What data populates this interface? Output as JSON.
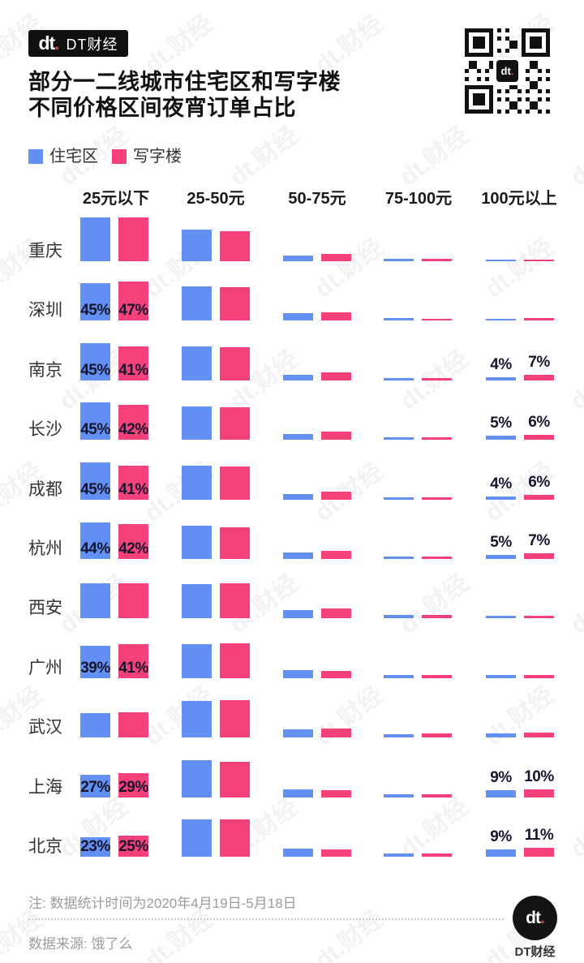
{
  "header": {
    "logo_mark_letters": "dt",
    "logo_mark_dot": ".",
    "logo_text": "DT财经",
    "qr_center_letters": "dt",
    "qr_center_dot": "."
  },
  "title": {
    "line1": "部分一二线城市住宅区和写字楼",
    "line2": "不同价格区间夜宵订单占比"
  },
  "legend": {
    "items": [
      {
        "label": "住宅区",
        "color": "#628FF3"
      },
      {
        "label": "写字楼",
        "color": "#F4417A"
      }
    ]
  },
  "colors": {
    "residential": "#628FF3",
    "office": "#F4417A"
  },
  "watermark": "dt.财经",
  "chart_data": {
    "type": "bar",
    "title": "部分一二线城市住宅区和写字楼不同价格区间夜宵订单占比",
    "unit": "%",
    "categories": [
      "25元以下",
      "25-50元",
      "50-75元",
      "75-100元",
      "100元以上"
    ],
    "series_names": [
      "住宅区",
      "写字楼"
    ],
    "rows": [
      {
        "city": "重庆",
        "residential": {
          "values": [
            52,
            38,
            7,
            3,
            2
          ],
          "labels": [
            "",
            "",
            "",
            "",
            ""
          ]
        },
        "office": {
          "values": [
            52,
            36,
            9,
            3,
            2
          ],
          "labels": [
            "",
            "",
            "",
            "",
            ""
          ]
        }
      },
      {
        "city": "深圳",
        "residential": {
          "values": [
            45,
            41,
            9,
            3,
            2
          ],
          "labels": [
            "45%",
            "",
            "",
            "",
            ""
          ]
        },
        "office": {
          "values": [
            47,
            40,
            10,
            2,
            3
          ],
          "labels": [
            "47%",
            "",
            "",
            "",
            ""
          ]
        }
      },
      {
        "city": "南京",
        "residential": {
          "values": [
            45,
            41,
            7,
            3,
            4
          ],
          "labels": [
            "45%",
            "",
            "",
            "",
            "4%"
          ]
        },
        "office": {
          "values": [
            41,
            40,
            10,
            3,
            7
          ],
          "labels": [
            "41%",
            "",
            "",
            "",
            "7%"
          ]
        }
      },
      {
        "city": "长沙",
        "residential": {
          "values": [
            45,
            40,
            7,
            3,
            5
          ],
          "labels": [
            "45%",
            "",
            "",
            "",
            "5%"
          ]
        },
        "office": {
          "values": [
            42,
            39,
            10,
            3,
            6
          ],
          "labels": [
            "42%",
            "",
            "",
            "",
            "6%"
          ]
        }
      },
      {
        "city": "成都",
        "residential": {
          "values": [
            45,
            41,
            7,
            3,
            4
          ],
          "labels": [
            "45%",
            "",
            "",
            "",
            "4%"
          ]
        },
        "office": {
          "values": [
            41,
            40,
            10,
            3,
            6
          ],
          "labels": [
            "41%",
            "",
            "",
            "",
            "6%"
          ]
        }
      },
      {
        "city": "杭州",
        "residential": {
          "values": [
            44,
            40,
            8,
            3,
            5
          ],
          "labels": [
            "44%",
            "",
            "",
            "",
            "5%"
          ]
        },
        "office": {
          "values": [
            42,
            38,
            10,
            3,
            7
          ],
          "labels": [
            "42%",
            "",
            "",
            "",
            "7%"
          ]
        }
      },
      {
        "city": "西安",
        "residential": {
          "values": [
            42,
            41,
            10,
            4,
            3
          ],
          "labels": [
            "",
            "",
            "",
            "",
            ""
          ]
        },
        "office": {
          "values": [
            42,
            42,
            12,
            4,
            3
          ],
          "labels": [
            "",
            "",
            "",
            "",
            ""
          ]
        }
      },
      {
        "city": "广州",
        "residential": {
          "values": [
            39,
            41,
            10,
            4,
            4
          ],
          "labels": [
            "39%",
            "",
            "",
            "",
            ""
          ]
        },
        "office": {
          "values": [
            41,
            42,
            9,
            4,
            4
          ],
          "labels": [
            "41%",
            "",
            "",
            "",
            ""
          ]
        }
      },
      {
        "city": "武汉",
        "residential": {
          "values": [
            29,
            44,
            10,
            4,
            5
          ],
          "labels": [
            "",
            "",
            "",
            "",
            ""
          ]
        },
        "office": {
          "values": [
            30,
            45,
            11,
            5,
            6
          ],
          "labels": [
            "",
            "",
            "",
            "",
            ""
          ]
        }
      },
      {
        "city": "上海",
        "residential": {
          "values": [
            27,
            45,
            10,
            4,
            9
          ],
          "labels": [
            "27%",
            "",
            "",
            "",
            "9%"
          ]
        },
        "office": {
          "values": [
            29,
            43,
            9,
            4,
            10
          ],
          "labels": [
            "29%",
            "",
            "",
            "",
            "10%"
          ]
        }
      },
      {
        "city": "北京",
        "residential": {
          "values": [
            23,
            45,
            10,
            4,
            9
          ],
          "labels": [
            "23%",
            "",
            "",
            "",
            "9%"
          ]
        },
        "office": {
          "values": [
            25,
            45,
            9,
            4,
            11
          ],
          "labels": [
            "25%",
            "",
            "",
            "",
            "11%"
          ]
        }
      }
    ]
  },
  "footer": {
    "note": "注: 数据统计时间为2020年4月19日-5月18日",
    "source": "数据来源: 饿了么",
    "brand_mark_letters": "dt",
    "brand_mark_dot": ".",
    "brand_text": "DT财经"
  }
}
